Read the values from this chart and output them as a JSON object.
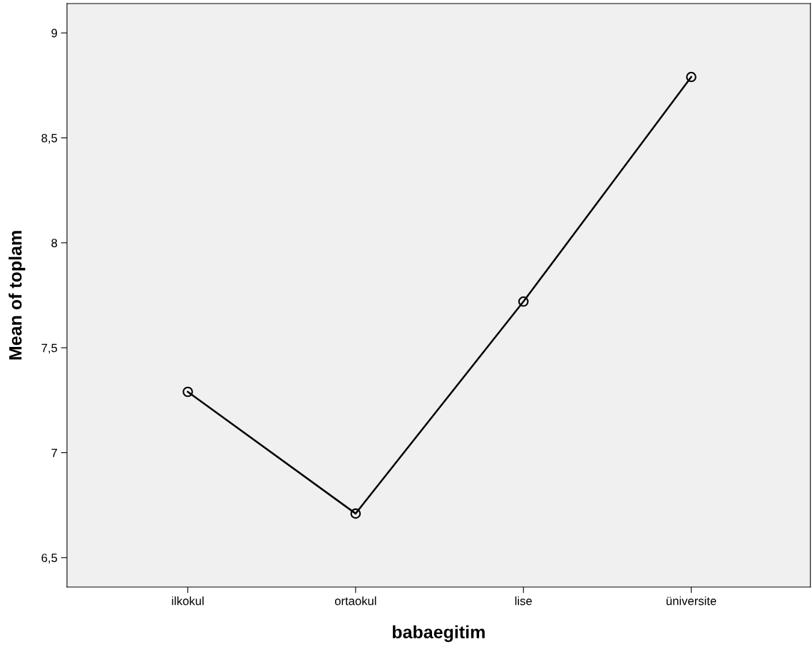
{
  "chart_data": {
    "type": "line",
    "xlabel": "babaegitim",
    "ylabel": "Mean of toplam",
    "categories": [
      "ilkokul",
      "ortaokul",
      "lise",
      "üniversite"
    ],
    "series": [
      {
        "color": "#000000",
        "values": [
          7.29,
          6.71,
          7.72,
          8.79
        ]
      }
    ],
    "ylim": [
      6.36,
      9.14
    ],
    "yticks": [
      {
        "value": 6.5,
        "label": "6,5"
      },
      7,
      {
        "value": 7.5,
        "label": "7,5"
      },
      8,
      {
        "value": 8.5,
        "label": "8,5"
      },
      9
    ],
    "marker": "circle",
    "line_style": "solid",
    "grid": false,
    "legend": false
  }
}
